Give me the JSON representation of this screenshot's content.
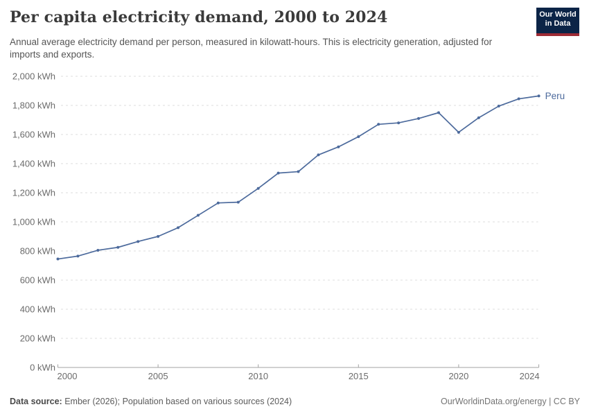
{
  "header": {
    "title": "Per capita electricity demand, 2000 to 2024",
    "subtitle": "Annual average electricity demand per person, measured in kilowatt-hours. This is electricity generation, adjusted for imports and exports.",
    "logo_line1": "Our World",
    "logo_line2": "in Data",
    "logo_bg_color": "#0b2447",
    "logo_accent_color": "#9e2b35"
  },
  "chart_data": {
    "type": "line",
    "title": "Per capita electricity demand, 2000 to 2024",
    "xlabel": "",
    "ylabel": "kWh",
    "x": [
      2000,
      2001,
      2002,
      2003,
      2004,
      2005,
      2006,
      2007,
      2008,
      2009,
      2010,
      2011,
      2012,
      2013,
      2014,
      2015,
      2016,
      2017,
      2018,
      2019,
      2020,
      2021,
      2022,
      2023,
      2024
    ],
    "series": [
      {
        "name": "Peru",
        "color": "#4c6a9c",
        "values": [
          745,
          765,
          805,
          825,
          865,
          900,
          960,
          1045,
          1130,
          1135,
          1230,
          1335,
          1345,
          1460,
          1515,
          1585,
          1670,
          1680,
          1710,
          1750,
          1615,
          1715,
          1795,
          1845,
          1865
        ]
      }
    ],
    "ylim": [
      0,
      2000
    ],
    "yticks": [
      0,
      200,
      400,
      600,
      800,
      1000,
      1200,
      1400,
      1600,
      1800,
      2000
    ],
    "ytick_labels": [
      "0 kWh",
      "200 kWh",
      "400 kWh",
      "600 kWh",
      "800 kWh",
      "1,000 kWh",
      "1,200 kWh",
      "1,400 kWh",
      "1,600 kWh",
      "1,800 kWh",
      "2,000 kWh"
    ],
    "xticks": [
      2000,
      2005,
      2010,
      2015,
      2020,
      2024
    ],
    "xtick_labels": [
      "2000",
      "2005",
      "2010",
      "2015",
      "2020",
      "2024"
    ],
    "grid": "horizontal-dashed",
    "legend_position": "end-of-line-label",
    "grid_color": "#dcdcdc",
    "axis_color": "#a3a3a3",
    "tick_label_color": "#6b6b6b"
  },
  "footer": {
    "source_label": "Data source:",
    "source_text": " Ember (2026); Population based on various sources (2024)",
    "link": "OurWorldinData.org/energy | CC BY"
  }
}
